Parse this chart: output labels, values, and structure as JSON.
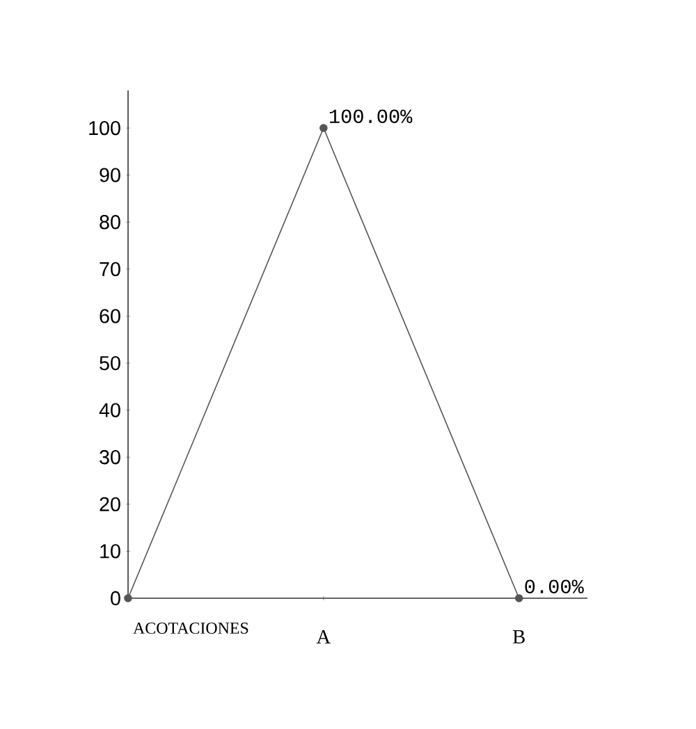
{
  "chart_data": {
    "type": "line",
    "xlabel": "ACOTACIONES",
    "categories": [
      null,
      "A",
      "B"
    ],
    "values": [
      0,
      100,
      0
    ],
    "value_labels": [
      null,
      "100.00%",
      "0.00%"
    ],
    "color": "#555555",
    "marker": "circle",
    "ylim": [
      0,
      108
    ],
    "yticks": [
      0,
      10,
      20,
      30,
      40,
      50,
      60,
      70,
      80,
      90,
      100
    ]
  }
}
